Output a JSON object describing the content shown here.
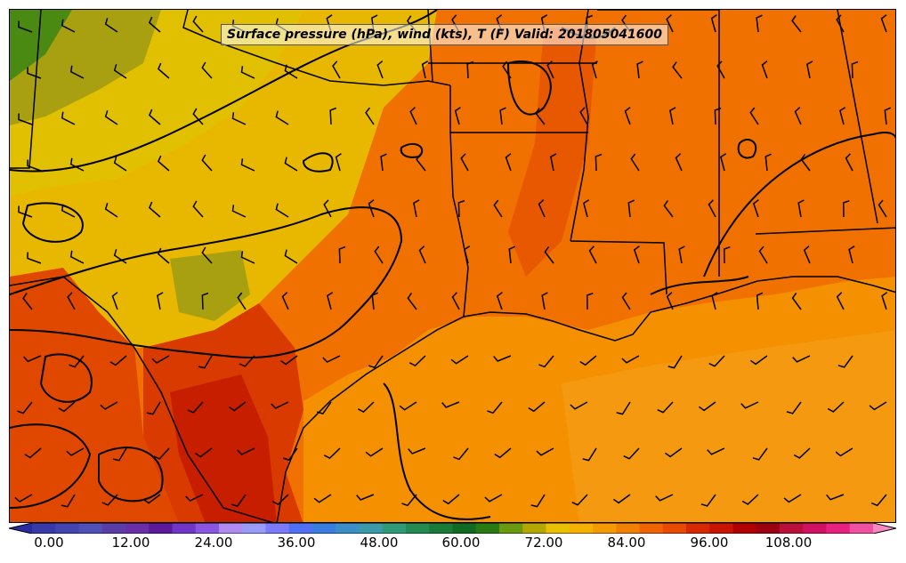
{
  "title": "Surface pressure (hPa), wind (kts), T (F) Valid: 201805041600",
  "colorbar": {
    "ticks": [
      "0.00",
      "12.00",
      "24.00",
      "36.00",
      "48.00",
      "60.00",
      "72.00",
      "84.00",
      "96.00",
      "108.00"
    ],
    "colors": [
      "#2b2ba0",
      "#3838a8",
      "#4444b0",
      "#5050b8",
      "#5b3da8",
      "#6a2fa8",
      "#5a1a9a",
      "#6f36c8",
      "#8a55e0",
      "#b08af0",
      "#9a9af8",
      "#7a7afa",
      "#4f6ff5",
      "#3a7de0",
      "#3b8fc8",
      "#3a9aa8",
      "#2f9a78",
      "#238a50",
      "#1a7a38",
      "#106a22",
      "#2a7a12",
      "#6a9a10",
      "#b4a800",
      "#e8c000",
      "#f5b000",
      "#f59a00",
      "#f08000",
      "#f06400",
      "#e84a00",
      "#d82800",
      "#c81400",
      "#b00000",
      "#9a0010",
      "#b8103a",
      "#d01060",
      "#e82080",
      "#f050a0",
      "#f888c0"
    ]
  },
  "map_layers": [
    "temperature-fill",
    "state-borders",
    "coastline",
    "pressure-isobars",
    "wind-barbs"
  ]
}
